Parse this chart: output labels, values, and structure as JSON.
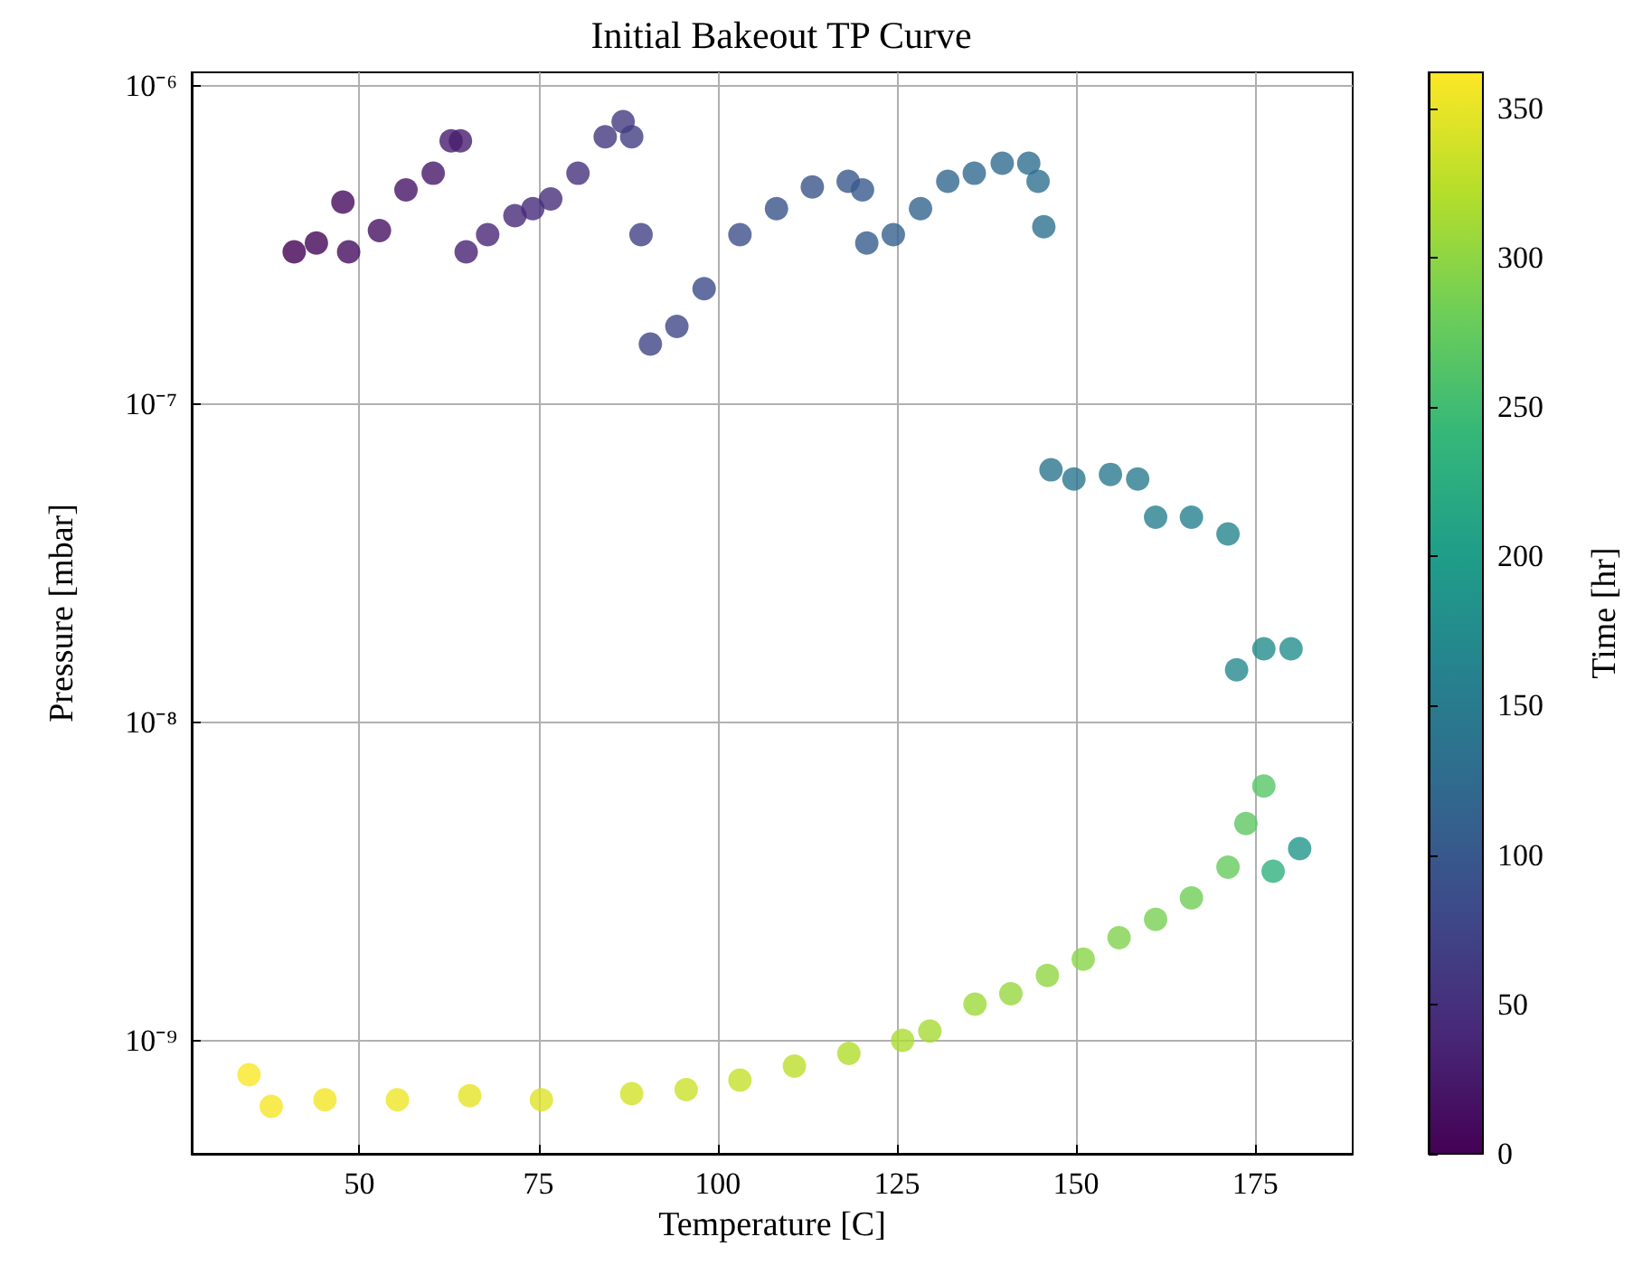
{
  "chart_data": {
    "type": "scatter",
    "title": "Initial Bakeout TP Curve",
    "xlabel": "Temperature [C]",
    "ylabel": "Pressure [mbar]",
    "clabel": "Time [hr]",
    "log": "y",
    "grid": true,
    "marker": "circle",
    "xlim": [
      26.6,
      188.6
    ],
    "xticks": [
      50,
      75,
      100,
      125,
      150,
      175
    ],
    "ylim": [
      4.4e-10,
      1.1e-06
    ],
    "yticks": [
      {
        "value": 1e-09,
        "label": "10⁻⁹"
      },
      {
        "value": 1e-08,
        "label": "10⁻⁸"
      },
      {
        "value": 1e-07,
        "label": "10⁻⁷"
      },
      {
        "value": 1e-06,
        "label": "10⁻⁶"
      }
    ],
    "clim": [
      0,
      362
    ],
    "cticks": [
      0,
      50,
      100,
      150,
      200,
      250,
      300,
      350
    ],
    "x": [
      40.9,
      44,
      47.7,
      48.5,
      52.8,
      56.5,
      60.3,
      62.8,
      64.1,
      64.9,
      67.9,
      71.7,
      74.2,
      76.7,
      80.5,
      84.3,
      86.8,
      88,
      89.3,
      90.6,
      94.3,
      98.1,
      103.1,
      108.2,
      113.2,
      118.2,
      120.2,
      120.8,
      124.5,
      128.3,
      132.1,
      135.8,
      139.7,
      143.4,
      144.7,
      145.5,
      146.5,
      149.7,
      154.8,
      158.6,
      161.1,
      166.1,
      171.2,
      172.4,
      176.2,
      180,
      181.2,
      177.5,
      176.2,
      173.7,
      171.2,
      166.1,
      161.1,
      156,
      151,
      146,
      140.9,
      135.9,
      129.6,
      125.8,
      118.3,
      110.7,
      103.1,
      95.6,
      88,
      75.4,
      65.4,
      55.3,
      45.2,
      37.7,
      34.6
    ],
    "values": [
      3e-07,
      3.2e-07,
      4.3e-07,
      3e-07,
      3.5e-07,
      4.7e-07,
      5.3e-07,
      6.7e-07,
      6.7e-07,
      3e-07,
      3.4e-07,
      3.9e-07,
      4.1e-07,
      4.4e-07,
      5.3e-07,
      6.9e-07,
      7.7e-07,
      6.9e-07,
      3.4e-07,
      1.54e-07,
      1.75e-07,
      2.3e-07,
      3.4e-07,
      4.1e-07,
      4.8e-07,
      5e-07,
      4.7e-07,
      3.2e-07,
      3.4e-07,
      4.1e-07,
      5e-07,
      5.3e-07,
      5.7e-07,
      5.7e-07,
      5e-07,
      3.6e-07,
      6.2e-08,
      5.8e-08,
      6e-08,
      5.8e-08,
      4.4e-08,
      4.4e-08,
      3.9e-08,
      1.46e-08,
      1.7e-08,
      1.7e-08,
      4e-09,
      3.4e-09,
      6.3e-09,
      4.8e-09,
      3.5e-09,
      2.8e-09,
      2.4e-09,
      2.1e-09,
      1.8e-09,
      1.6e-09,
      1.4e-09,
      1.3e-09,
      1.07e-09,
      1e-09,
      9.1e-10,
      8.3e-10,
      7.5e-10,
      7e-10,
      6.8e-10,
      6.5e-10,
      6.7e-10,
      6.5e-10,
      6.5e-10,
      6.2e-10,
      7.8e-10
    ],
    "cvalues": [
      0,
      5,
      10,
      12,
      16,
      20,
      24,
      28,
      30,
      33,
      37,
      41,
      44,
      47,
      52,
      58,
      62,
      66,
      70,
      74,
      78,
      83,
      88,
      92,
      96,
      100,
      103,
      106,
      110,
      114,
      118,
      122,
      126,
      130,
      133,
      136,
      139,
      143,
      147,
      151,
      155,
      160,
      165,
      170,
      175,
      180,
      190,
      230,
      265,
      270,
      275,
      282,
      287,
      292,
      297,
      301,
      305,
      309,
      313,
      316,
      320,
      325,
      330,
      334,
      338,
      344,
      349,
      353,
      356,
      358,
      360
    ]
  }
}
